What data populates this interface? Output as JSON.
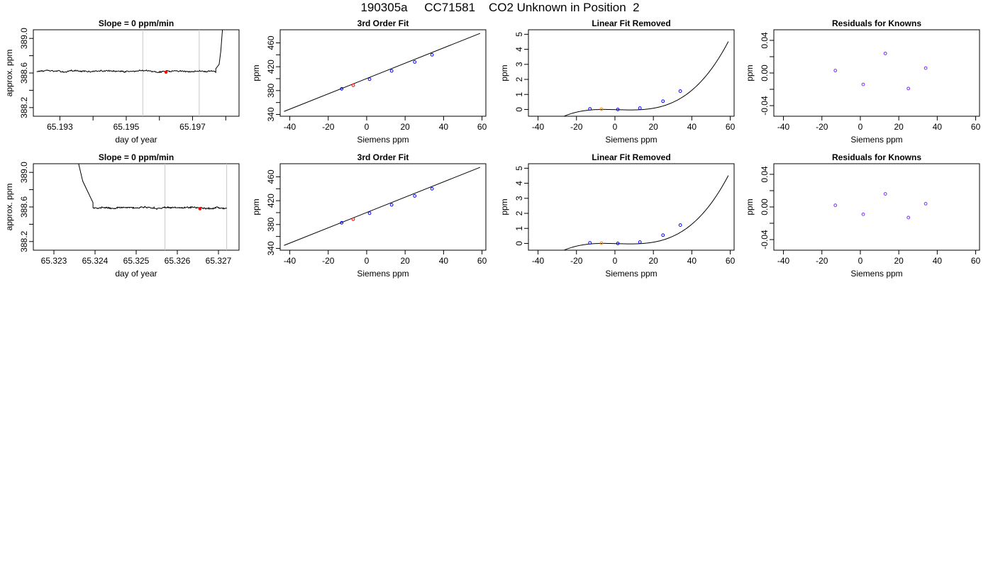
{
  "page_title": "190305a     CC71581    CO2 Unknown in Position  2",
  "chart_data": [
    {
      "id": "r1-time",
      "type": "line",
      "title": "Slope =  0  ppm/min",
      "xlabel": "day of year",
      "ylabel": "approx. ppm",
      "xlim": [
        65.1922,
        65.1984
      ],
      "ylim": [
        388.1,
        389.1
      ],
      "xticks": [
        65.193,
        65.194,
        65.195,
        65.196,
        65.197,
        65.198
      ],
      "xtick_labels": [
        "65.193",
        "",
        "65.195",
        "",
        "65.197",
        ""
      ],
      "yticks": [
        388.2,
        388.4,
        388.6,
        388.8,
        389.0
      ],
      "ytick_labels": [
        "388.2",
        "",
        "388.6",
        "",
        "389.0"
      ],
      "vlines": [
        65.1955,
        65.1972
      ],
      "trace": {
        "x0": 65.1923,
        "x1": 65.1977,
        "base": 388.62,
        "rise": {
          "x": [
            65.1977,
            65.1978,
            65.19785,
            65.1979
          ],
          "y": [
            388.65,
            388.7,
            388.85,
            389.1
          ]
        }
      },
      "marker": {
        "x": 65.1962,
        "y": 388.61,
        "color": "#ff0000"
      }
    },
    {
      "id": "r1-fit",
      "type": "scatter",
      "title": "3rd Order Fit",
      "xlabel": "Siemens ppm",
      "ylabel": "ppm",
      "xlim": [
        -45,
        62
      ],
      "ylim": [
        337,
        482
      ],
      "xticks": [
        -40,
        -20,
        0,
        20,
        40,
        60
      ],
      "xtick_labels": [
        "-40",
        "-20",
        "0",
        "20",
        "40",
        "60"
      ],
      "yticks": [
        340,
        360,
        380,
        400,
        420,
        440,
        460
      ],
      "ytick_labels": [
        "340",
        "",
        "380",
        "",
        "420",
        "",
        "460"
      ],
      "curve": {
        "x": [
          -43,
          59
        ],
        "y": [
          345,
          476
        ]
      },
      "points": [
        {
          "x": -13,
          "y": 383,
          "color": "#0000ff"
        },
        {
          "x": -7,
          "y": 389,
          "color": "#ff0000"
        },
        {
          "x": 1.5,
          "y": 399,
          "color": "#0000ff"
        },
        {
          "x": 13,
          "y": 413,
          "color": "#0000ff"
        },
        {
          "x": 25,
          "y": 428,
          "color": "#0000ff"
        },
        {
          "x": 34,
          "y": 440,
          "color": "#0000ff"
        }
      ]
    },
    {
      "id": "r1-lin",
      "type": "scatter",
      "title": "Linear Fit Removed",
      "xlabel": "Siemens ppm",
      "ylabel": "ppm",
      "xlim": [
        -45,
        62
      ],
      "ylim": [
        -0.45,
        5.3
      ],
      "xticks": [
        -40,
        -20,
        0,
        20,
        40,
        60
      ],
      "xtick_labels": [
        "-40",
        "-20",
        "0",
        "20",
        "40",
        "60"
      ],
      "yticks": [
        0,
        1,
        2,
        3,
        4,
        5
      ],
      "ytick_labels": [
        "0",
        "1",
        "2",
        "3",
        "4",
        "5"
      ],
      "curve": {
        "xmin": -43,
        "xmax": 59,
        "coef": [
          -0.01,
          -0.00335,
          -0.0001,
          2.47e-05
        ]
      },
      "points": [
        {
          "x": -13,
          "y": 0.04,
          "color": "#0000ff"
        },
        {
          "x": -7,
          "y": 0.02,
          "color": "#ff8c00"
        },
        {
          "x": 1.5,
          "y": 0.0,
          "color": "#0000ff"
        },
        {
          "x": 13,
          "y": 0.09,
          "color": "#0000ff"
        },
        {
          "x": 25,
          "y": 0.55,
          "color": "#0000ff"
        },
        {
          "x": 34,
          "y": 1.22,
          "color": "#0000ff"
        }
      ]
    },
    {
      "id": "r1-res",
      "type": "scatter",
      "title": "Residuals for Knowns",
      "xlabel": "Siemens ppm",
      "ylabel": "ppm",
      "xlim": [
        -45,
        62
      ],
      "ylim": [
        -0.053,
        0.053
      ],
      "xticks": [
        -40,
        -20,
        0,
        20,
        40,
        60
      ],
      "xtick_labels": [
        "-40",
        "-20",
        "0",
        "20",
        "40",
        "60"
      ],
      "yticks": [
        -0.04,
        -0.02,
        0,
        0.02,
        0.04
      ],
      "ytick_labels": [
        "-0.04",
        "",
        "0.00",
        "",
        "0.04"
      ],
      "points": [
        {
          "x": -13,
          "y": 0.003,
          "color": "#7b2cff"
        },
        {
          "x": 1.5,
          "y": -0.014,
          "color": "#7b2cff"
        },
        {
          "x": 13,
          "y": 0.024,
          "color": "#7b2cff"
        },
        {
          "x": 25,
          "y": -0.019,
          "color": "#7b2cff"
        },
        {
          "x": 34,
          "y": 0.006,
          "color": "#7b2cff"
        }
      ]
    },
    {
      "id": "r2-time",
      "type": "line",
      "title": "Slope =  0  ppm/min",
      "xlabel": "day of year",
      "ylabel": "approx. ppm",
      "xlim": [
        65.3225,
        65.3275
      ],
      "ylim": [
        388.1,
        389.1
      ],
      "xticks": [
        65.323,
        65.324,
        65.325,
        65.326,
        65.327
      ],
      "xtick_labels": [
        "65.323",
        "65.324",
        "65.325",
        "65.326",
        "65.327"
      ],
      "yticks": [
        388.2,
        388.4,
        388.6,
        388.8,
        389.0
      ],
      "ytick_labels": [
        "388.2",
        "",
        "388.6",
        "",
        "389.0"
      ],
      "vlines": [
        65.3257,
        65.3272
      ],
      "trace": {
        "x0": 65.32395,
        "x1": 65.3272,
        "base": 388.59,
        "decay": {
          "x": [
            65.3236,
            65.32365,
            65.3237,
            65.3238,
            65.3239,
            65.32395
          ],
          "y": [
            389.1,
            389.0,
            388.9,
            388.8,
            388.7,
            388.65
          ]
        }
      },
      "marker": {
        "x": 65.32655,
        "y": 388.58,
        "color": "#ff0000"
      }
    },
    {
      "id": "r2-fit",
      "type": "scatter",
      "title": "3rd Order Fit",
      "xlabel": "Siemens ppm",
      "ylabel": "ppm",
      "xlim": [
        -45,
        62
      ],
      "ylim": [
        337,
        482
      ],
      "xticks": [
        -40,
        -20,
        0,
        20,
        40,
        60
      ],
      "xtick_labels": [
        "-40",
        "-20",
        "0",
        "20",
        "40",
        "60"
      ],
      "yticks": [
        340,
        360,
        380,
        400,
        420,
        440,
        460
      ],
      "ytick_labels": [
        "340",
        "",
        "380",
        "",
        "420",
        "",
        "460"
      ],
      "curve": {
        "x": [
          -43,
          59
        ],
        "y": [
          345,
          476
        ]
      },
      "points": [
        {
          "x": -13,
          "y": 383,
          "color": "#0000ff"
        },
        {
          "x": -7,
          "y": 389,
          "color": "#ff0000"
        },
        {
          "x": 1.5,
          "y": 399,
          "color": "#0000ff"
        },
        {
          "x": 13,
          "y": 413,
          "color": "#0000ff"
        },
        {
          "x": 25,
          "y": 428,
          "color": "#0000ff"
        },
        {
          "x": 34,
          "y": 440,
          "color": "#0000ff"
        }
      ]
    },
    {
      "id": "r2-lin",
      "type": "scatter",
      "title": "Linear Fit Removed",
      "xlabel": "Siemens ppm",
      "ylabel": "ppm",
      "xlim": [
        -45,
        62
      ],
      "ylim": [
        -0.45,
        5.3
      ],
      "xticks": [
        -40,
        -20,
        0,
        20,
        40,
        60
      ],
      "xtick_labels": [
        "-40",
        "-20",
        "0",
        "20",
        "40",
        "60"
      ],
      "yticks": [
        0,
        1,
        2,
        3,
        4,
        5
      ],
      "ytick_labels": [
        "0",
        "1",
        "2",
        "3",
        "4",
        "5"
      ],
      "curve": {
        "xmin": -43,
        "xmax": 59,
        "coef": [
          -0.01,
          -0.00335,
          -0.0001,
          2.47e-05
        ]
      },
      "points": [
        {
          "x": -13,
          "y": 0.04,
          "color": "#0000ff"
        },
        {
          "x": -7,
          "y": 0.02,
          "color": "#ff8c00"
        },
        {
          "x": 1.5,
          "y": 0.0,
          "color": "#0000ff"
        },
        {
          "x": 13,
          "y": 0.09,
          "color": "#0000ff"
        },
        {
          "x": 25,
          "y": 0.55,
          "color": "#0000ff"
        },
        {
          "x": 34,
          "y": 1.22,
          "color": "#0000ff"
        }
      ]
    },
    {
      "id": "r2-res",
      "type": "scatter",
      "title": "Residuals for Knowns",
      "xlabel": "Siemens ppm",
      "ylabel": "ppm",
      "xlim": [
        -45,
        62
      ],
      "ylim": [
        -0.053,
        0.053
      ],
      "xticks": [
        -40,
        -20,
        0,
        20,
        40,
        60
      ],
      "xtick_labels": [
        "-40",
        "-20",
        "0",
        "20",
        "40",
        "60"
      ],
      "yticks": [
        -0.04,
        -0.02,
        0,
        0.02,
        0.04
      ],
      "ytick_labels": [
        "-0.04",
        "",
        "0.00",
        "",
        "0.04"
      ],
      "points": [
        {
          "x": -13,
          "y": 0.002,
          "color": "#7b2cff"
        },
        {
          "x": 1.5,
          "y": -0.009,
          "color": "#7b2cff"
        },
        {
          "x": 13,
          "y": 0.016,
          "color": "#7b2cff"
        },
        {
          "x": 25,
          "y": -0.013,
          "color": "#7b2cff"
        },
        {
          "x": 34,
          "y": 0.004,
          "color": "#7b2cff"
        }
      ]
    }
  ]
}
